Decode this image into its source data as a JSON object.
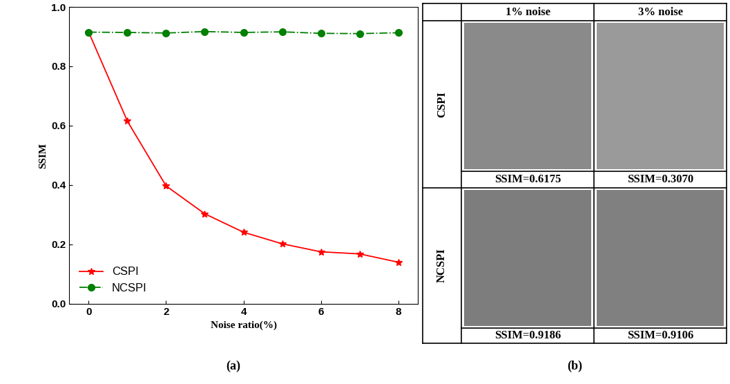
{
  "chart_data": {
    "type": "line",
    "x_label": "Noise ratio(%)",
    "y_label": "SSIM",
    "x": [
      0,
      1,
      2,
      3,
      4,
      5,
      6,
      7,
      8
    ],
    "series": [
      {
        "name": "CSPI",
        "color": "#ff0000",
        "marker": "star",
        "line_style": "solid",
        "values": [
          0.915,
          0.615,
          0.397,
          0.303,
          0.241,
          0.202,
          0.175,
          0.168,
          0.14
        ]
      },
      {
        "name": "NCSPI",
        "color": "#008000",
        "marker": "circle",
        "line_style": "dashdot",
        "values": [
          0.915,
          0.914,
          0.912,
          0.917,
          0.914,
          0.916,
          0.911,
          0.91,
          0.913
        ]
      }
    ],
    "xlim": [
      -0.5,
      8.5
    ],
    "xticks": [
      0,
      2,
      4,
      6,
      8
    ],
    "ylim": [
      0,
      1.0
    ],
    "yticks": [
      {
        "value": 0,
        "label": "0.0"
      },
      {
        "value": 0.2,
        "label": "0.2"
      },
      {
        "value": 0.4,
        "label": "0.4"
      },
      {
        "value": 0.6,
        "label": "0.6"
      },
      {
        "value": 0.8,
        "label": "0.8"
      },
      {
        "value": 1.0,
        "label": "1.0"
      }
    ],
    "legend": "lower left",
    "grid": false
  },
  "panel_b": {
    "columns": [
      "1% noise",
      "3% noise"
    ],
    "rows": [
      {
        "label": "CSPI",
        "ssim": [
          "SSIM=0.6175",
          "SSIM=0.3070"
        ]
      },
      {
        "label": "NCSPI",
        "ssim": [
          "SSIM=0.9186",
          "SSIM=0.9106"
        ]
      }
    ]
  },
  "panel_labels": [
    "(a)",
    "(b)"
  ]
}
